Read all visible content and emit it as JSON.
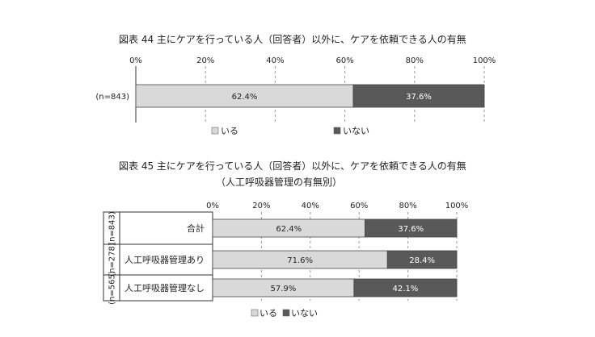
{
  "chart_data": [
    {
      "type": "bar",
      "orientation": "horizontal",
      "stacked": true,
      "title": "図表 44 主にケアを行っている人（回答者）以外に、ケアを依頼できる人の有無",
      "categories": [
        "(n=843)"
      ],
      "series": [
        {
          "name": "いる",
          "values": [
            62.4
          ],
          "labels": [
            "62.4%"
          ],
          "color": "#d9d9d9"
        },
        {
          "name": "いない",
          "values": [
            37.6
          ],
          "labels": [
            "37.6%"
          ],
          "color": "#595959"
        }
      ],
      "xticks": [
        "0%",
        "20%",
        "40%",
        "60%",
        "80%",
        "100%"
      ],
      "xlim": [
        0,
        100
      ],
      "grid": true,
      "legend": "bottom"
    },
    {
      "type": "bar",
      "orientation": "horizontal",
      "stacked": true,
      "title": "図表 45 主にケアを行っている人（回答者）以外に、ケアを依頼できる人の有無",
      "subtitle": "（人工呼吸器管理の有無別）",
      "categories": [
        "合計",
        "人工呼吸器管理あり",
        "人工呼吸器管理なし"
      ],
      "category_n": [
        "(n=843)",
        "(n=278)",
        "(n=565)"
      ],
      "series": [
        {
          "name": "いる",
          "values": [
            62.4,
            71.6,
            57.9
          ],
          "labels": [
            "62.4%",
            "71.6%",
            "57.9%"
          ],
          "color": "#d9d9d9"
        },
        {
          "name": "いない",
          "values": [
            37.6,
            28.4,
            42.1
          ],
          "labels": [
            "37.6%",
            "28.4%",
            "42.1%"
          ],
          "color": "#595959"
        }
      ],
      "xticks": [
        "0%",
        "20%",
        "40%",
        "60%",
        "80%",
        "100%"
      ],
      "xlim": [
        0,
        100
      ],
      "grid": true,
      "legend": "bottom"
    }
  ]
}
